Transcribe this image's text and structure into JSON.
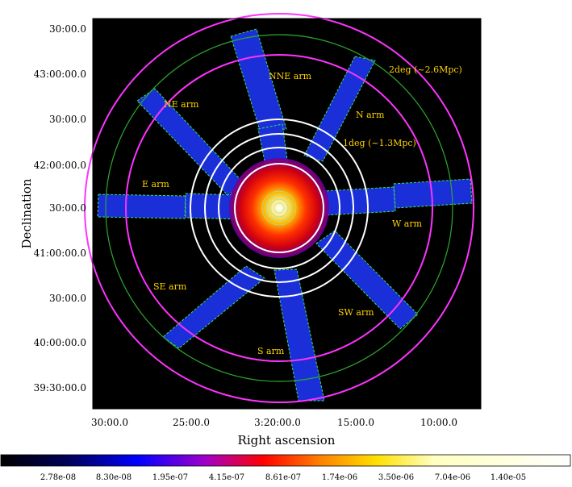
{
  "figure": {
    "y_ticks": [
      "30:00.0",
      "43:00:00.0",
      "30:00.0",
      "42:00:00.0",
      "30:00.0",
      "41:00:00.0",
      "30:00.0",
      "40:00:00.0",
      "39:30:00.0"
    ],
    "x_ticks": [
      "30:00.0",
      "25:00.0",
      "3:20:00.0",
      "15:00.0",
      "10:00.0"
    ],
    "ylabel": "Declination",
    "xlabel": "Right ascension",
    "arm_labels": [
      "NNE arm",
      "NE arm",
      "N arm",
      "E arm",
      "W arm",
      "SE arm",
      "SW arm",
      "S arm"
    ],
    "annotations": [
      "2deg (~2.6Mpc)",
      "1deg (~1.3Mpc)"
    ],
    "colorbar_ticks": [
      "2.78e-08",
      "8.30e-08",
      "1.95e-07",
      "4.15e-07",
      "8.61e-07",
      "1.74e-06",
      "3.50e-06",
      "7.04e-06",
      "1.40e-05"
    ],
    "colors": {
      "background": "#000000",
      "arm": "#1a2fd8",
      "contour": "#37e36a",
      "ring_inner": "#ffffff",
      "ring_outer": "#ff33ff",
      "green_circle": "#2ea82e",
      "label": "#ffd200"
    }
  }
}
